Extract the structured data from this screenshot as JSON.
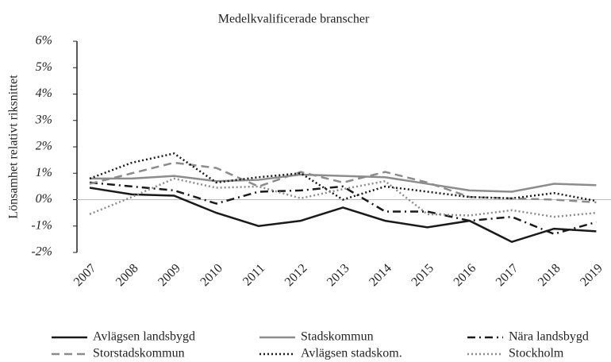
{
  "chart_data": {
    "type": "line",
    "title": "Medelkvalificerade branscher",
    "y_label": "Lönsamhet relativt riksnittet",
    "categories": [
      "2007",
      "2008",
      "2009",
      "2010",
      "2011",
      "2012",
      "2013",
      "2014",
      "2015",
      "2016",
      "2017",
      "2018",
      "2019"
    ],
    "ylim": [
      -2,
      6
    ],
    "yticks": [
      {
        "value": -2,
        "label": "-2%"
      },
      {
        "value": -1,
        "label": "-1%"
      },
      {
        "value": 0,
        "label": "0%"
      },
      {
        "value": 1,
        "label": "1%"
      },
      {
        "value": 2,
        "label": "2%"
      },
      {
        "value": 3,
        "label": "3%"
      },
      {
        "value": 4,
        "label": "4%"
      },
      {
        "value": 5,
        "label": "5%"
      },
      {
        "value": 6,
        "label": "6%"
      }
    ],
    "series": [
      {
        "name": "Avlägsen landsbygd",
        "color": "#1a1a1a",
        "dash": "solid",
        "values": [
          0.45,
          0.2,
          0.15,
          -0.5,
          -1.0,
          -0.8,
          -0.3,
          -0.8,
          -1.05,
          -0.8,
          -1.6,
          -1.1,
          -1.2
        ]
      },
      {
        "name": "Stadskommun",
        "color": "#8c8c8c",
        "dash": "solid",
        "values": [
          0.8,
          0.8,
          0.9,
          0.7,
          0.75,
          0.95,
          0.9,
          0.85,
          0.6,
          0.35,
          0.3,
          0.6,
          0.55
        ]
      },
      {
        "name": "Nära landsbygd",
        "color": "#1a1a1a",
        "dash": "dashdot",
        "values": [
          0.65,
          0.5,
          0.35,
          -0.15,
          0.3,
          0.35,
          0.5,
          -0.45,
          -0.45,
          -0.8,
          -0.65,
          -1.3,
          -0.85
        ]
      },
      {
        "name": "Storstadskommun",
        "color": "#8c8c8c",
        "dash": "dashed",
        "values": [
          0.6,
          1.0,
          1.4,
          1.2,
          0.5,
          1.05,
          0.65,
          1.05,
          0.65,
          0.1,
          0.05,
          0.0,
          -0.1
        ]
      },
      {
        "name": "Avlägsen stadskom.",
        "color": "#1a1a1a",
        "dash": "dotted",
        "values": [
          0.8,
          1.4,
          1.75,
          0.65,
          0.85,
          1.0,
          0.0,
          0.5,
          0.3,
          0.1,
          0.05,
          0.25,
          -0.05
        ]
      },
      {
        "name": "Stockholm",
        "color": "#8c8c8c",
        "dash": "dotted",
        "values": [
          -0.55,
          0.1,
          0.8,
          0.45,
          0.5,
          0.05,
          0.4,
          0.7,
          -0.55,
          -0.6,
          -0.4,
          -0.65,
          -0.5
        ]
      }
    ]
  }
}
